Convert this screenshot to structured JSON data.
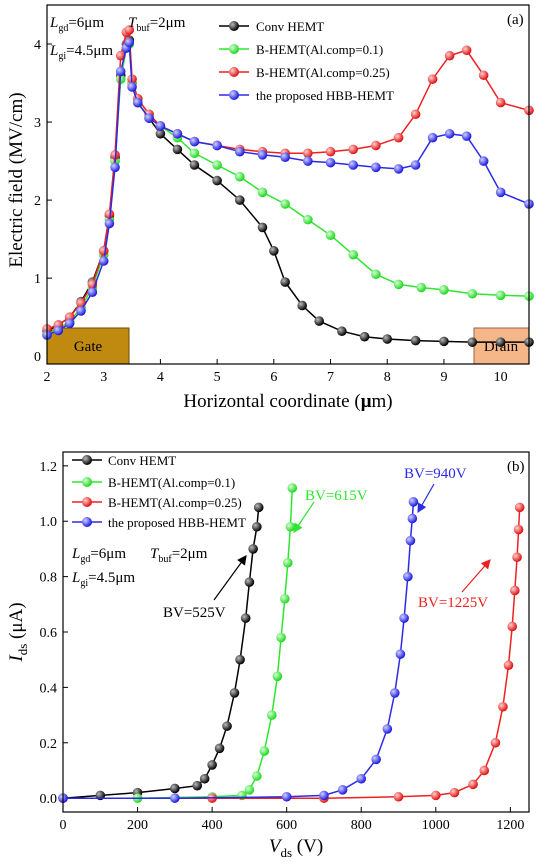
{
  "chart_data": [
    {
      "panel": "(a)",
      "type": "line",
      "xlabel_prefix": "Horizontal coordinate (",
      "xlabel_mu": "μ",
      "xlabel_suffix": "m)",
      "ylabel": "Electric field (MV/cm)",
      "xlim": [
        2,
        10.5
      ],
      "ylim": [
        -0.1,
        4.5
      ],
      "xticks": [
        2,
        3,
        4,
        5,
        6,
        7,
        8,
        9,
        10
      ],
      "yticks": [
        0,
        1,
        2,
        3,
        4
      ],
      "grid": false,
      "legend_position": "top-right",
      "params": {
        "lgd_main": "L",
        "lgd_sub": "gd",
        "lgd_val": "=6μm",
        "tbuf_main": "T",
        "tbuf_sub": "buf",
        "tbuf_val": "=2μm",
        "lgi_main": "L",
        "lgi_sub": "gi",
        "lgi_val": "=4.5μm"
      },
      "electrodes": {
        "gate": "Gate",
        "drain": "Drain"
      },
      "series": [
        {
          "name": "Conv HEMT",
          "color": "#000000",
          "x": [
            2.0,
            2.2,
            2.4,
            2.6,
            2.8,
            3.0,
            3.1,
            3.2,
            3.3,
            3.4,
            3.45,
            3.5,
            3.6,
            3.8,
            4.0,
            4.3,
            4.6,
            5.0,
            5.4,
            5.8,
            6.0,
            6.2,
            6.5,
            6.8,
            7.2,
            7.6,
            8.0,
            8.5,
            9.0,
            9.5,
            10.0,
            10.5
          ],
          "y": [
            0.32,
            0.4,
            0.5,
            0.7,
            0.95,
            1.35,
            1.8,
            2.55,
            3.6,
            4.0,
            4.05,
            3.5,
            3.25,
            3.05,
            2.85,
            2.65,
            2.45,
            2.25,
            2.0,
            1.65,
            1.35,
            0.95,
            0.65,
            0.45,
            0.32,
            0.25,
            0.22,
            0.2,
            0.19,
            0.18,
            0.18,
            0.18
          ]
        },
        {
          "name": "B-HEMT(Al.comp=0.1)",
          "color": "#2ee62e",
          "x": [
            2.0,
            2.2,
            2.4,
            2.6,
            2.8,
            3.0,
            3.1,
            3.2,
            3.3,
            3.4,
            3.45,
            3.5,
            3.6,
            3.8,
            4.0,
            4.3,
            4.6,
            5.0,
            5.4,
            5.8,
            6.2,
            6.6,
            7.0,
            7.4,
            7.8,
            8.2,
            8.6,
            9.0,
            9.5,
            10.0,
            10.5
          ],
          "y": [
            0.28,
            0.35,
            0.45,
            0.62,
            0.88,
            1.3,
            1.75,
            2.5,
            3.55,
            3.95,
            4.0,
            3.5,
            3.3,
            3.1,
            2.95,
            2.8,
            2.6,
            2.45,
            2.3,
            2.1,
            1.95,
            1.75,
            1.55,
            1.3,
            1.05,
            0.92,
            0.88,
            0.85,
            0.8,
            0.78,
            0.77
          ]
        },
        {
          "name": "B-HEMT(Al.comp=0.25)",
          "color": "#ee2020",
          "x": [
            2.0,
            2.2,
            2.4,
            2.6,
            2.8,
            3.0,
            3.1,
            3.2,
            3.3,
            3.4,
            3.45,
            3.5,
            3.6,
            3.8,
            4.0,
            4.3,
            4.6,
            5.0,
            5.4,
            5.8,
            6.2,
            6.6,
            7.0,
            7.4,
            7.8,
            8.2,
            8.5,
            8.8,
            9.1,
            9.4,
            9.7,
            10.0,
            10.5
          ],
          "y": [
            0.35,
            0.4,
            0.5,
            0.68,
            0.92,
            1.35,
            1.82,
            2.58,
            3.85,
            4.15,
            4.18,
            3.55,
            3.3,
            3.1,
            2.95,
            2.85,
            2.75,
            2.7,
            2.65,
            2.62,
            2.6,
            2.6,
            2.62,
            2.65,
            2.7,
            2.8,
            3.1,
            3.55,
            3.85,
            3.92,
            3.6,
            3.25,
            3.15
          ]
        },
        {
          "name": "the proposed HBB-HEMT",
          "color": "#2b2be6",
          "x": [
            2.0,
            2.2,
            2.4,
            2.6,
            2.8,
            3.0,
            3.1,
            3.2,
            3.3,
            3.4,
            3.45,
            3.5,
            3.6,
            3.8,
            4.0,
            4.3,
            4.6,
            5.0,
            5.4,
            5.8,
            6.2,
            6.6,
            7.0,
            7.4,
            7.8,
            8.2,
            8.5,
            8.8,
            9.1,
            9.4,
            9.7,
            10.0,
            10.5
          ],
          "y": [
            0.27,
            0.33,
            0.42,
            0.58,
            0.82,
            1.22,
            1.7,
            2.42,
            3.65,
            3.95,
            4.02,
            3.45,
            3.25,
            3.05,
            2.95,
            2.85,
            2.75,
            2.7,
            2.62,
            2.58,
            2.55,
            2.5,
            2.48,
            2.45,
            2.42,
            2.4,
            2.45,
            2.8,
            2.85,
            2.82,
            2.5,
            2.1,
            1.95
          ]
        }
      ]
    },
    {
      "panel": "(b)",
      "type": "line",
      "xlabel_main": "V",
      "xlabel_sub": "ds",
      "xlabel_unit": " (V)",
      "ylabel_main": "I",
      "ylabel_sub": "ds",
      "ylabel_unit": " (μA)",
      "xlim": [
        0,
        1250
      ],
      "ylim": [
        -0.05,
        1.25
      ],
      "xticks": [
        0,
        200,
        400,
        600,
        800,
        1000,
        1200
      ],
      "yticks": [
        0.0,
        0.2,
        0.4,
        0.6,
        0.8,
        1.0,
        1.2
      ],
      "ytick_labels": [
        "0.0",
        "0.2",
        "0.4",
        "0.6",
        "0.8",
        "1.0",
        "1.2"
      ],
      "grid": false,
      "legend_position": "top-left",
      "params": {
        "lgd_main": "L",
        "lgd_sub": "gd",
        "lgd_val": "=6μm",
        "tbuf_main": "T",
        "tbuf_sub": "buf",
        "tbuf_val": "=2μm",
        "lgi_main": "L",
        "lgi_sub": "gi",
        "lgi_val": "=4.5μm"
      },
      "annotations": [
        {
          "text": "BV=525V",
          "color": "#000000"
        },
        {
          "text": "BV=615V",
          "color": "#2ee62e"
        },
        {
          "text": "BV=940V",
          "color": "#2b2be6"
        },
        {
          "text": "BV=1225V",
          "color": "#ee2020"
        }
      ],
      "series": [
        {
          "name": "Conv HEMT",
          "color": "#000000",
          "x": [
            0,
            100,
            200,
            300,
            360,
            380,
            400,
            420,
            440,
            460,
            475,
            490,
            500,
            510,
            520,
            525
          ],
          "y": [
            0.0,
            0.01,
            0.02,
            0.035,
            0.045,
            0.07,
            0.12,
            0.18,
            0.26,
            0.38,
            0.5,
            0.65,
            0.78,
            0.9,
            0.98,
            1.05
          ]
        },
        {
          "name": "B-HEMT(Al.comp=0.1)",
          "color": "#2ee62e",
          "x": [
            0,
            200,
            400,
            480,
            500,
            520,
            540,
            560,
            575,
            585,
            595,
            603,
            610,
            615
          ],
          "y": [
            0.0,
            0.0,
            0.005,
            0.01,
            0.03,
            0.08,
            0.17,
            0.3,
            0.44,
            0.58,
            0.72,
            0.85,
            0.98,
            1.12
          ]
        },
        {
          "name": "B-HEMT(Al.comp=0.25)",
          "color": "#ee2020",
          "x": [
            0,
            400,
            700,
            900,
            1000,
            1050,
            1100,
            1130,
            1160,
            1180,
            1195,
            1205,
            1212,
            1218,
            1222,
            1225
          ],
          "y": [
            0.0,
            0.0,
            0.0,
            0.005,
            0.01,
            0.02,
            0.05,
            0.1,
            0.2,
            0.33,
            0.48,
            0.62,
            0.75,
            0.87,
            0.97,
            1.05
          ]
        },
        {
          "name": "the proposed HBB-HEMT",
          "color": "#2b2be6",
          "x": [
            0,
            300,
            600,
            700,
            750,
            800,
            840,
            870,
            890,
            905,
            915,
            925,
            932,
            937,
            940
          ],
          "y": [
            0.0,
            0.0,
            0.005,
            0.01,
            0.03,
            0.07,
            0.14,
            0.25,
            0.38,
            0.52,
            0.65,
            0.8,
            0.93,
            1.01,
            1.07
          ]
        }
      ]
    }
  ]
}
